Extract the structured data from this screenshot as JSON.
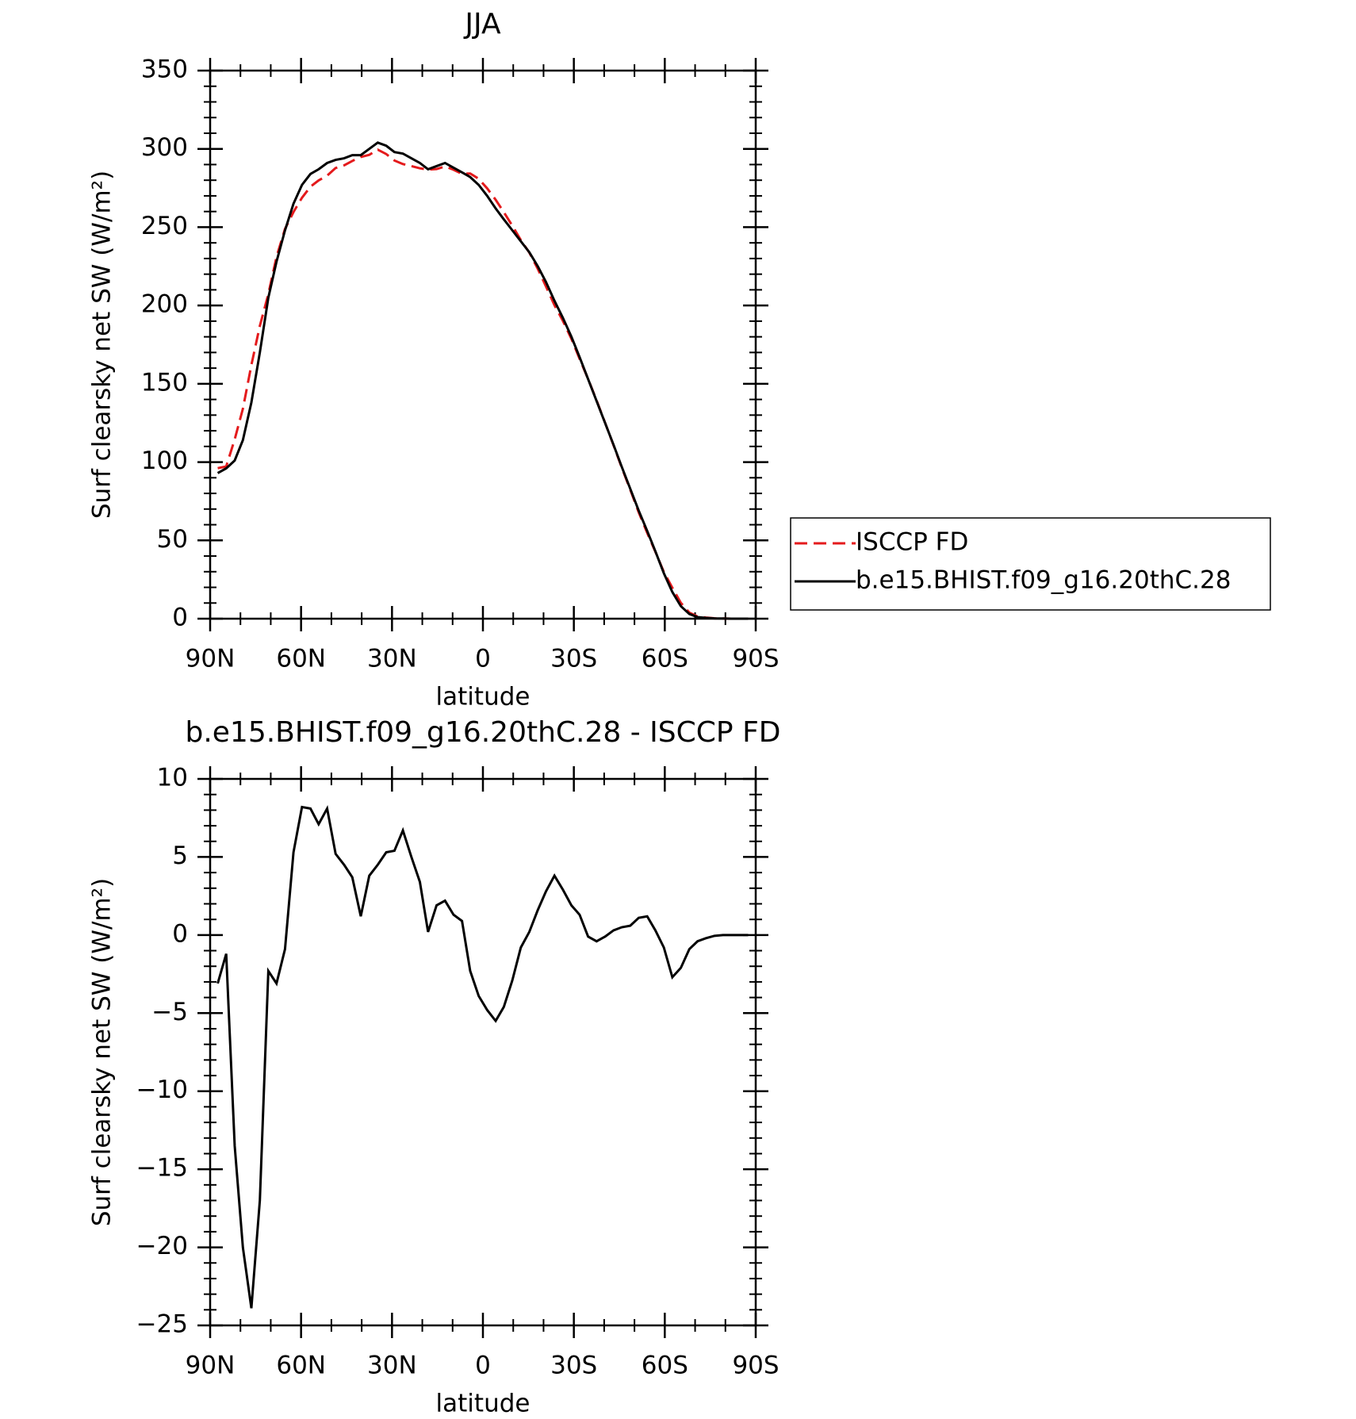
{
  "chart_data": [
    {
      "type": "line",
      "title": "JJA",
      "xlabel": "latitude",
      "ylabel": "Surf clearsky net SW (W/m²)",
      "xlim": [
        90,
        -90
      ],
      "xticks": [
        {
          "value": 90,
          "label": "90N"
        },
        {
          "value": 60,
          "label": "60N"
        },
        {
          "value": 30,
          "label": "30N"
        },
        0,
        {
          "value": -30,
          "label": "30S"
        },
        {
          "value": -60,
          "label": "60S"
        },
        {
          "value": -90,
          "label": "90S"
        }
      ],
      "ylim": [
        0,
        350
      ],
      "yticks": [
        0,
        50,
        100,
        150,
        200,
        250,
        300,
        350
      ],
      "legend": "right",
      "x": [
        87.5,
        84.7,
        81.9,
        79.2,
        76.4,
        73.6,
        70.8,
        68.1,
        65.3,
        62.5,
        59.7,
        56.9,
        54.2,
        51.4,
        48.6,
        45.8,
        43.1,
        40.3,
        37.5,
        34.7,
        31.9,
        29.2,
        26.4,
        23.6,
        20.8,
        18.1,
        15.3,
        12.5,
        9.7,
        6.9,
        4.2,
        1.4,
        -1.4,
        -4.2,
        -6.9,
        -9.7,
        -12.5,
        -15.3,
        -18.1,
        -20.8,
        -23.6,
        -26.4,
        -29.2,
        -31.9,
        -34.7,
        -37.5,
        -40.3,
        -43.1,
        -45.8,
        -48.6,
        -51.4,
        -54.2,
        -56.9,
        -59.7,
        -62.5,
        -65.3,
        -68.1,
        -70.8,
        -73.6,
        -76.4,
        -79.2,
        -81.9,
        -84.7,
        -87.5
      ],
      "series": [
        {
          "name": "ISCCP FD",
          "color": "#e41a1c",
          "dash": true,
          "values": [
            96.1,
            97.2,
            114.5,
            134,
            161.9,
            187,
            207.3,
            231.1,
            248.9,
            259.7,
            268.8,
            275.9,
            279.9,
            282.9,
            287.8,
            289.5,
            292.3,
            294.8,
            296.2,
            299.5,
            296.7,
            292.6,
            290.3,
            289,
            287.6,
            286.8,
            287.1,
            288.8,
            286.7,
            284.1,
            284.3,
            280.9,
            274.8,
            267.5,
            259.6,
            250.9,
            241.8,
            233.8,
            223.4,
            212.2,
            200.2,
            190.1,
            178.7,
            165.9,
            153.1,
            139.4,
            125.1,
            110.7,
            96.5,
            82.4,
            67.9,
            54.8,
            42.7,
            29.8,
            19.7,
            10.1,
            3.9,
            1.4,
            0.7,
            0.25,
            0.1,
            0,
            0,
            0
          ]
        },
        {
          "name": "b.e15.BHIST.f09_g16.20thC.28",
          "color": "#000000",
          "dash": false,
          "values": [
            93,
            96,
            101,
            114,
            138,
            170,
            205,
            228,
            248,
            265,
            277,
            284,
            287,
            291,
            293,
            294,
            296,
            296,
            300,
            304,
            302,
            298,
            297,
            294,
            291,
            287,
            289,
            291,
            288,
            285,
            282,
            277,
            270,
            262,
            255,
            248,
            241,
            234,
            225,
            215,
            203,
            192,
            180,
            167,
            153,
            139,
            125,
            111,
            97,
            83,
            69,
            56,
            43,
            29,
            17,
            8,
            3,
            1,
            0.5,
            0.2,
            0.1,
            0,
            0,
            0
          ]
        }
      ]
    },
    {
      "type": "line",
      "title": "b.e15.BHIST.f09_g16.20thC.28 - ISCCP FD",
      "xlabel": "latitude",
      "ylabel": "Surf clearsky net SW (W/m²)",
      "xlim": [
        90,
        -90
      ],
      "xticks": [
        {
          "value": 90,
          "label": "90N"
        },
        {
          "value": 60,
          "label": "60N"
        },
        {
          "value": 30,
          "label": "30N"
        },
        0,
        {
          "value": -30,
          "label": "30S"
        },
        {
          "value": -60,
          "label": "60S"
        },
        {
          "value": -90,
          "label": "90S"
        }
      ],
      "ylim": [
        -25,
        10
      ],
      "yticks": [
        {
          "value": -25,
          "label": "−25"
        },
        {
          "value": -20,
          "label": "−20"
        },
        {
          "value": -15,
          "label": "−15"
        },
        {
          "value": -10,
          "label": "−10"
        },
        {
          "value": -5,
          "label": "−5"
        },
        0,
        5,
        10
      ],
      "x": [
        87.5,
        84.7,
        81.9,
        79.2,
        76.4,
        73.6,
        70.8,
        68.1,
        65.3,
        62.5,
        59.7,
        56.9,
        54.2,
        51.4,
        48.6,
        45.8,
        43.1,
        40.3,
        37.5,
        34.7,
        31.9,
        29.2,
        26.4,
        23.6,
        20.8,
        18.1,
        15.3,
        12.5,
        9.7,
        6.9,
        4.2,
        1.4,
        -1.4,
        -4.2,
        -6.9,
        -9.7,
        -12.5,
        -15.3,
        -18.1,
        -20.8,
        -23.6,
        -26.4,
        -29.2,
        -31.9,
        -34.7,
        -37.5,
        -40.3,
        -43.1,
        -45.8,
        -48.6,
        -51.4,
        -54.2,
        -56.9,
        -59.7,
        -62.5,
        -65.3,
        -68.1,
        -70.8,
        -73.6,
        -76.4,
        -79.2,
        -81.9,
        -84.7,
        -87.5
      ],
      "series": [
        {
          "color": "#000000",
          "dash": false,
          "values": [
            -3.1,
            -1.2,
            -13.5,
            -20,
            -23.9,
            -17,
            -2.3,
            -3.1,
            -0.9,
            5.3,
            8.2,
            8.1,
            7.1,
            8.1,
            5.2,
            4.5,
            3.7,
            1.2,
            3.8,
            4.5,
            5.3,
            5.4,
            6.7,
            5.0,
            3.4,
            0.2,
            1.9,
            2.2,
            1.3,
            0.9,
            -2.3,
            -3.9,
            -4.8,
            -5.5,
            -4.6,
            -2.9,
            -0.8,
            0.2,
            1.6,
            2.8,
            3.8,
            2.9,
            1.9,
            1.3,
            -0.1,
            -0.4,
            -0.1,
            0.3,
            0.5,
            0.6,
            1.1,
            1.2,
            0.3,
            -0.8,
            -2.7,
            -2.1,
            -0.9,
            -0.4,
            -0.2,
            -0.05,
            0,
            0,
            0,
            0
          ]
        }
      ]
    }
  ]
}
